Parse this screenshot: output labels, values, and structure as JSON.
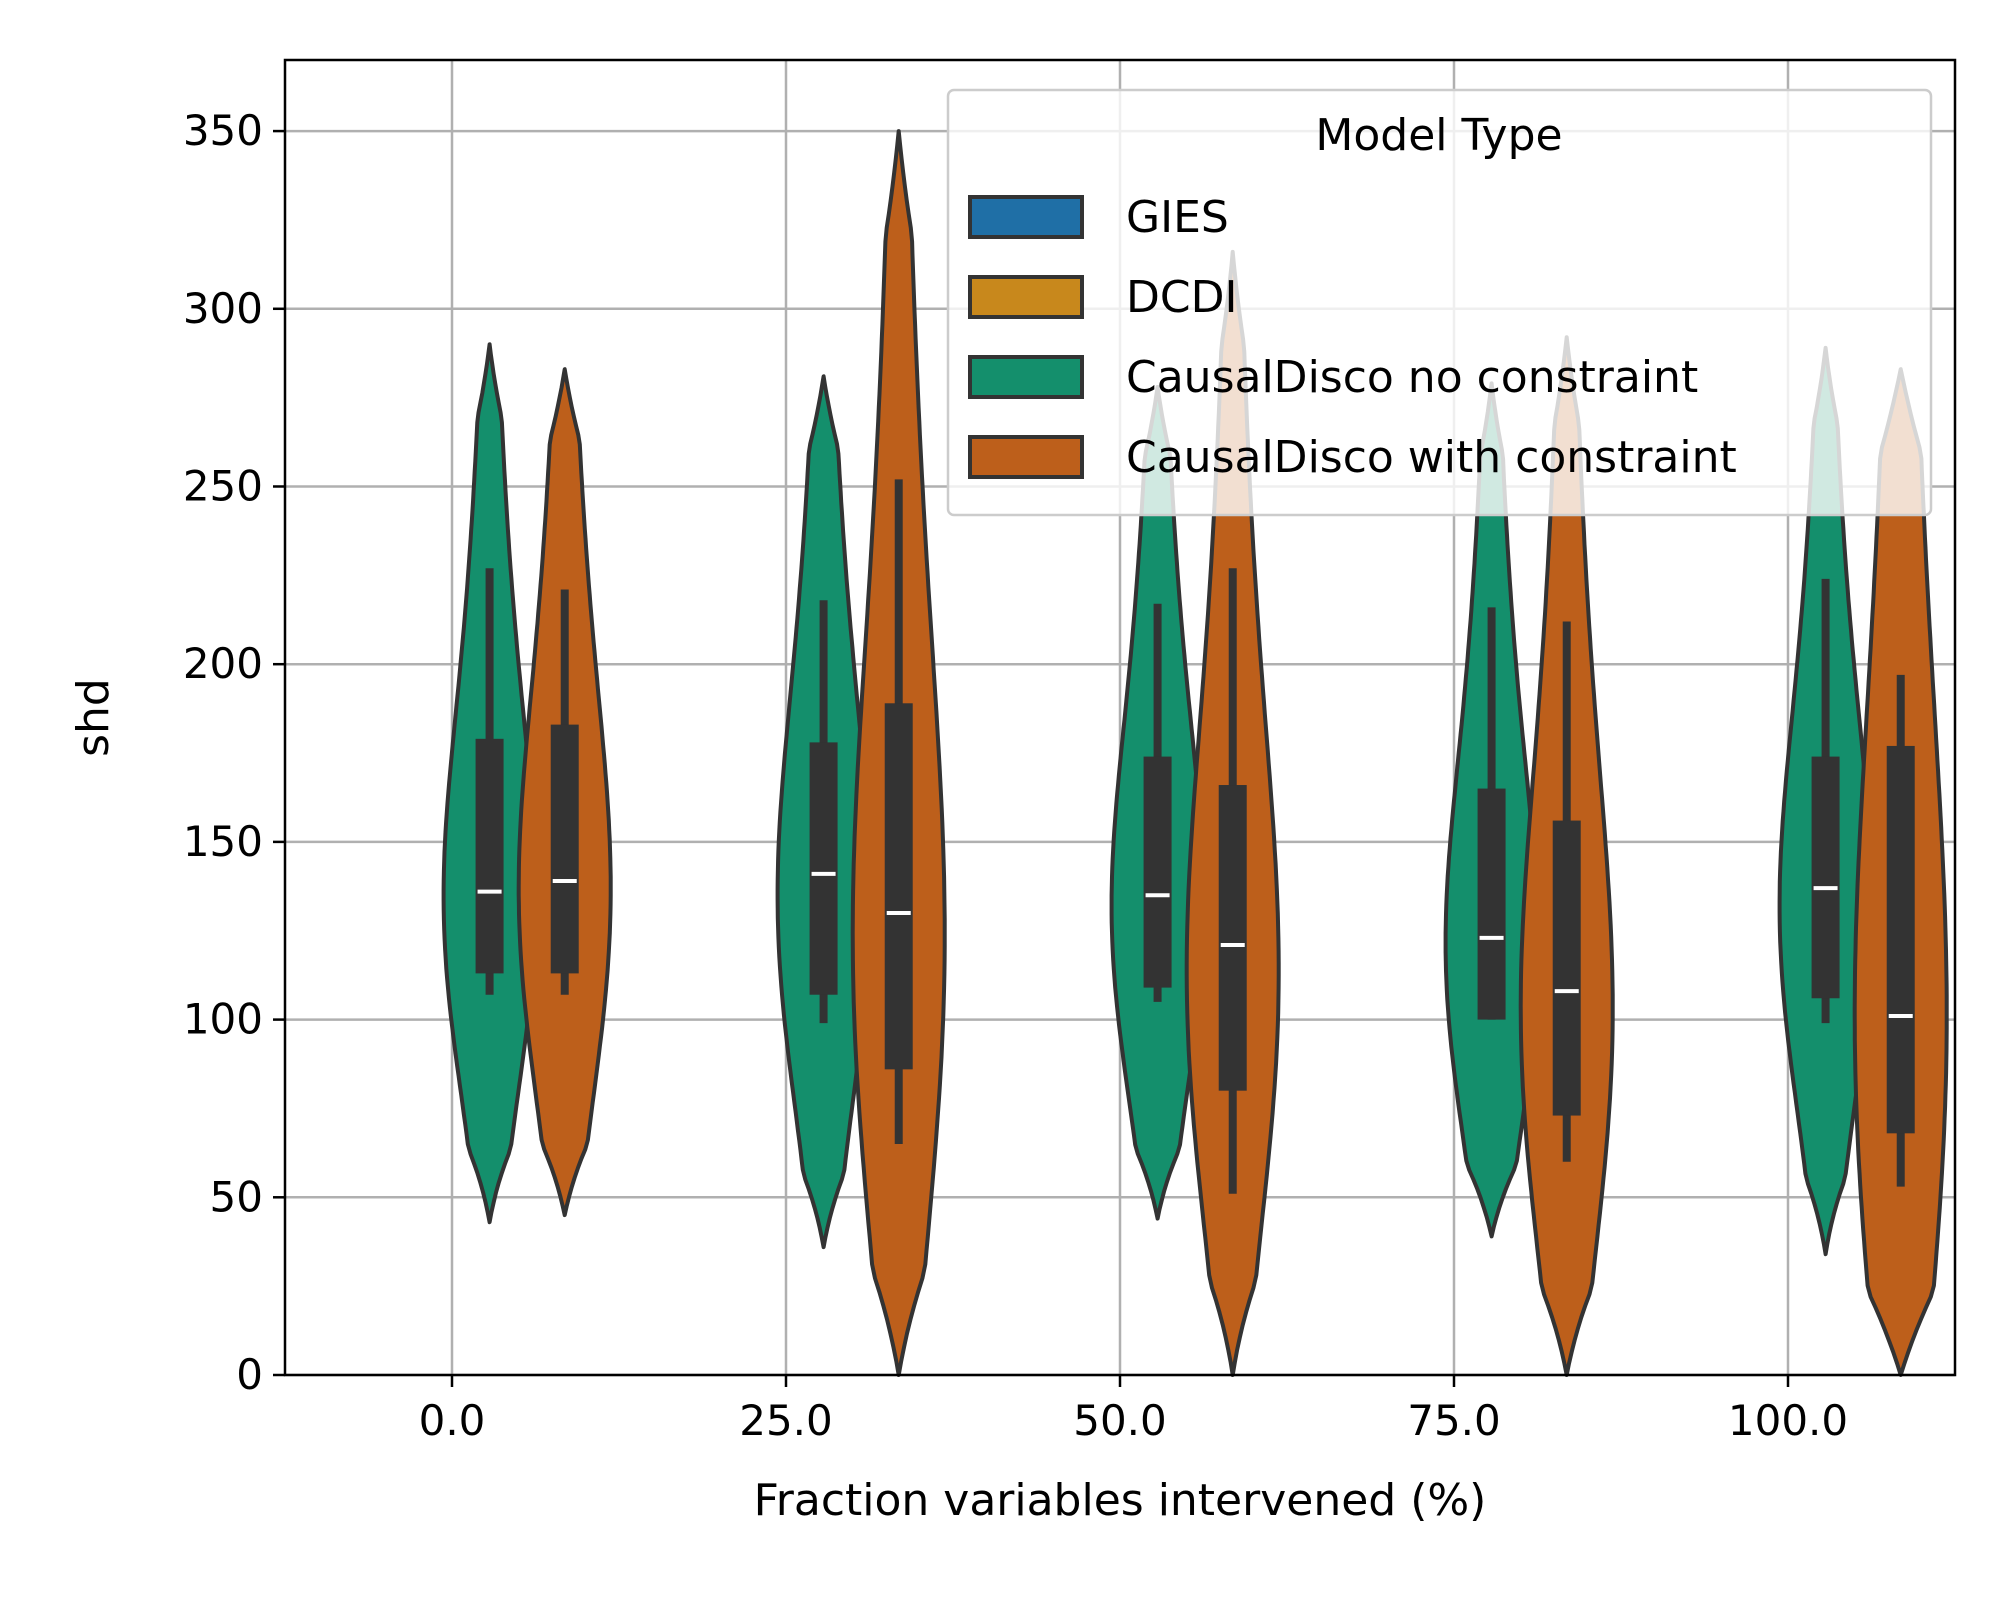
{
  "chart_data": {
    "type": "violin",
    "title": "",
    "xlabel": "Fraction variables intervened (%)",
    "ylabel": "shd",
    "ylim": [
      0,
      370
    ],
    "categories": [
      "0.0",
      "25.0",
      "50.0",
      "75.0",
      "100.0"
    ],
    "yticks": [
      0,
      50,
      100,
      150,
      200,
      250,
      300,
      350
    ],
    "grid": true,
    "legend": {
      "title": "Model Type",
      "placement": "top-right",
      "entries": [
        {
          "name": "GIES",
          "color": "#1f6fa6"
        },
        {
          "name": "DCDI",
          "color": "#c8881c"
        },
        {
          "name": "CausalDisco no constraint",
          "color": "#148f6c"
        },
        {
          "name": "CausalDisco with constraint",
          "color": "#bd5f1b"
        }
      ]
    },
    "series": [
      {
        "name": "CausalDisco no constraint",
        "color": "#148f6c",
        "stats": [
          {
            "category": "0.0",
            "min": 43,
            "max": 290,
            "q1": 113,
            "median": 136,
            "q3": 179,
            "whisker_low": 107,
            "whisker_high": 227
          },
          {
            "category": "25.0",
            "min": 36,
            "max": 281,
            "q1": 107,
            "median": 141,
            "q3": 178,
            "whisker_low": 99,
            "whisker_high": 218
          },
          {
            "category": "50.0",
            "min": 44,
            "max": 278,
            "q1": 109,
            "median": 135,
            "q3": 174,
            "whisker_low": 105,
            "whisker_high": 217
          },
          {
            "category": "75.0",
            "min": 39,
            "max": 279,
            "q1": 100,
            "median": 123,
            "q3": 165,
            "whisker_low": 100,
            "whisker_high": 216
          },
          {
            "category": "100.0",
            "min": 34,
            "max": 289,
            "q1": 106,
            "median": 137,
            "q3": 174,
            "whisker_low": 99,
            "whisker_high": 224
          }
        ]
      },
      {
        "name": "CausalDisco with constraint",
        "color": "#bd5f1b",
        "stats": [
          {
            "category": "0.0",
            "min": 45,
            "max": 283,
            "q1": 113,
            "median": 139,
            "q3": 183,
            "whisker_low": 107,
            "whisker_high": 221
          },
          {
            "category": "25.0",
            "min": 0,
            "max": 350,
            "q1": 86,
            "median": 130,
            "q3": 189,
            "whisker_low": 65,
            "whisker_high": 252
          },
          {
            "category": "50.0",
            "min": 0,
            "max": 316,
            "q1": 80,
            "median": 121,
            "q3": 166,
            "whisker_low": 51,
            "whisker_high": 227
          },
          {
            "category": "75.0",
            "min": 0,
            "max": 292,
            "q1": 73,
            "median": 108,
            "q3": 156,
            "whisker_low": 60,
            "whisker_high": 212
          },
          {
            "category": "100.0",
            "min": 0,
            "max": 283,
            "q1": 68,
            "median": 101,
            "q3": 177,
            "whisker_low": 53,
            "whisker_high": 197
          }
        ]
      }
    ]
  }
}
